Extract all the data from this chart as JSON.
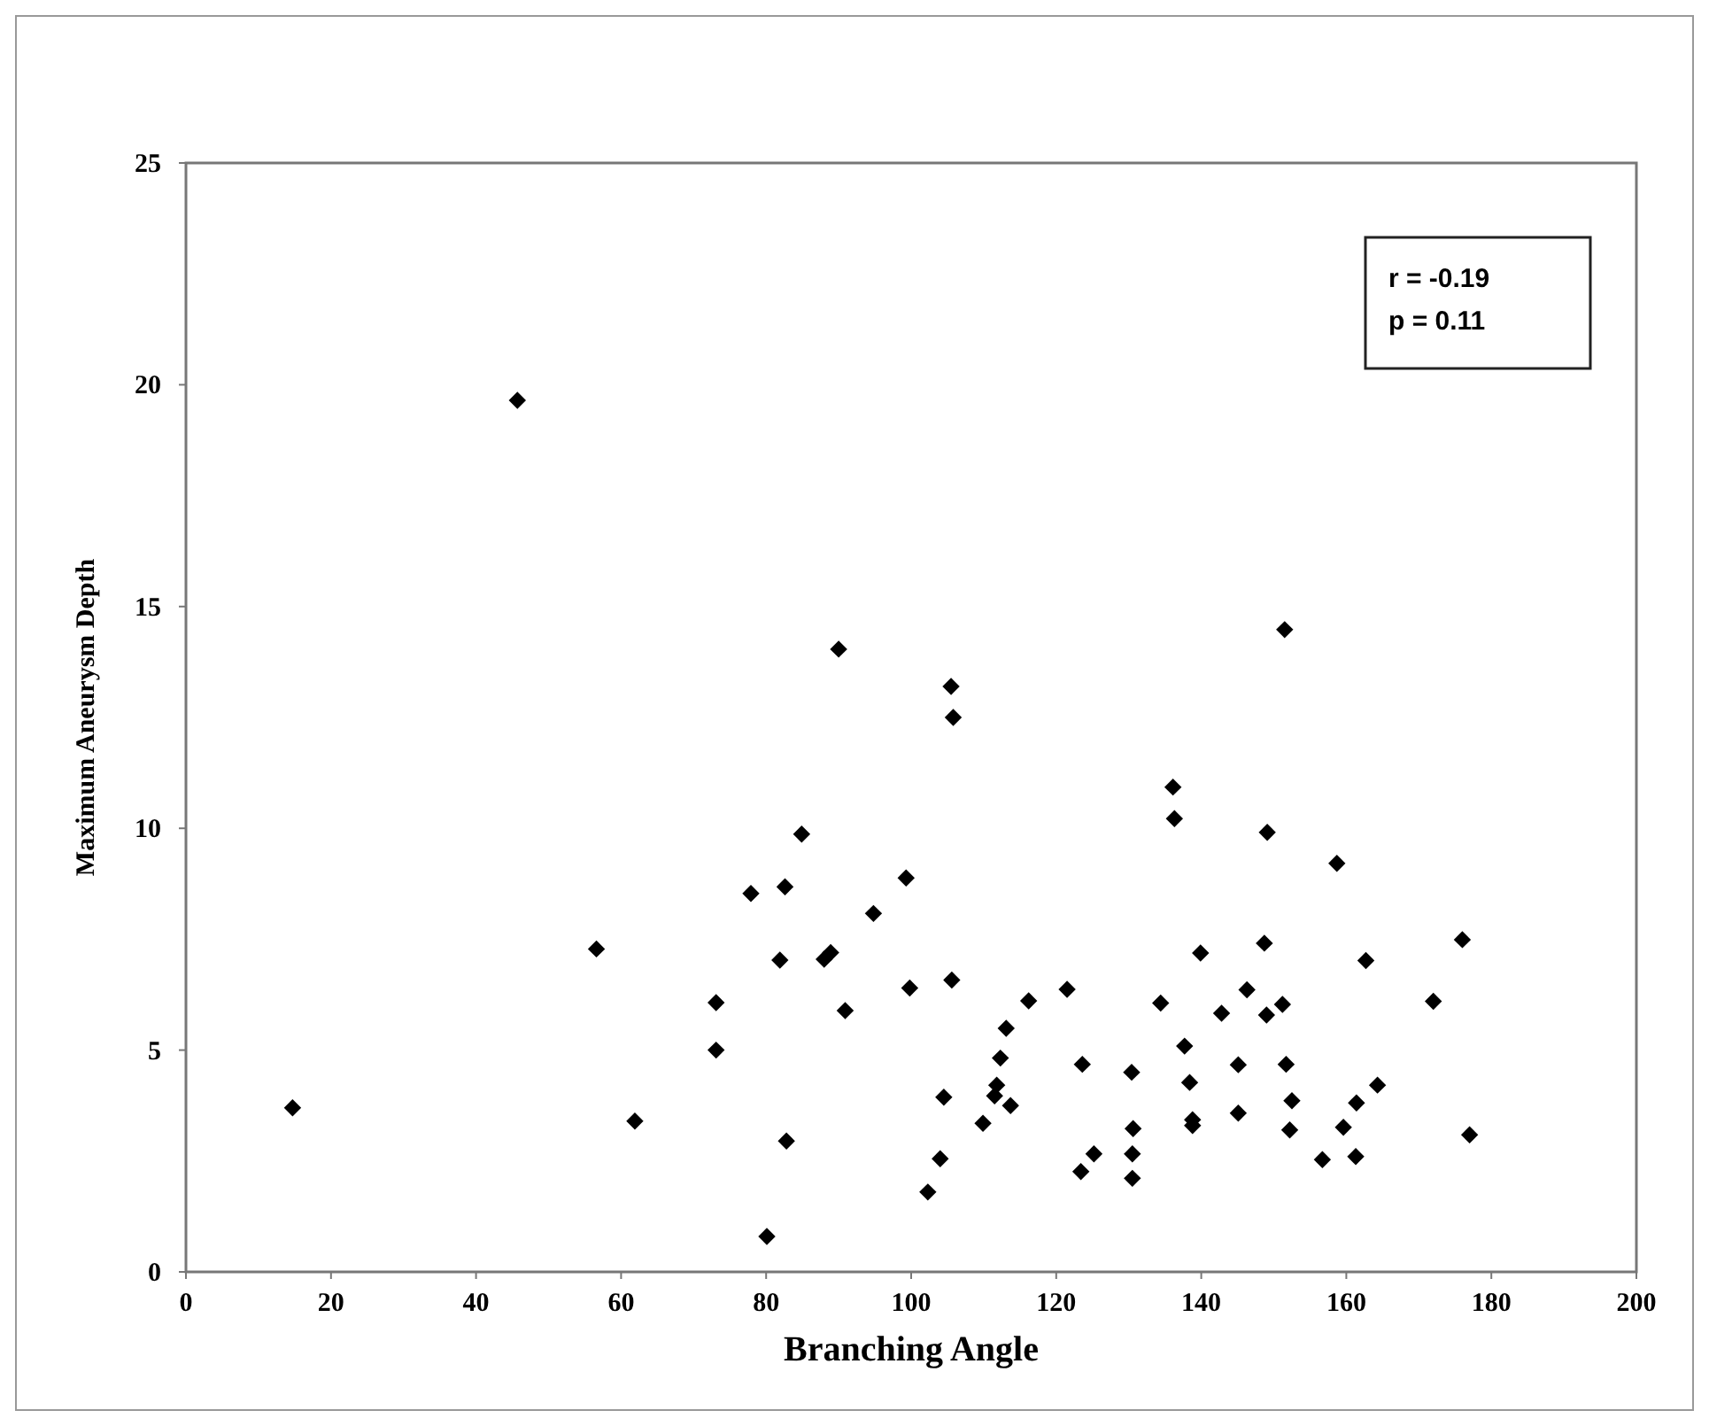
{
  "chart_data": {
    "type": "scatter",
    "xlabel": "Branching Angle",
    "ylabel": "Maximum Aneurysm Depth",
    "xlim": [
      0,
      200
    ],
    "xticks": [
      0,
      20,
      40,
      60,
      80,
      100,
      120,
      140,
      160,
      180,
      200
    ],
    "ylim": [
      0,
      25
    ],
    "yticks": [
      0,
      5,
      10,
      15,
      20,
      25
    ],
    "marker": "diamond",
    "grid": false,
    "annotations": [
      "r = -0.19",
      "p = 0.11"
    ],
    "series": [
      {
        "color": "#000000",
        "x": [
          14.7,
          45.7,
          90,
          105.5,
          105.8,
          151.5,
          56.6,
          84.9,
          77.9,
          82.6,
          99.3,
          94.8,
          81.9,
          88.0,
          88.9,
          99.8,
          105.6,
          73.1,
          90.9,
          116.2,
          121.5,
          113.1,
          112.3,
          73.1,
          111.8,
          111.5,
          104.5,
          113.7,
          109.9,
          61.9,
          82.8,
          104,
          102.3,
          80.1,
          136.1,
          136.3,
          149.1,
          158.7,
          139.9,
          148.7,
          162.7,
          176.0,
          172.0,
          134.4,
          142.8,
          146.3,
          149.0,
          151.2,
          123.6,
          130.4,
          137.7,
          138.4,
          145.1,
          151.7,
          152.5,
          164.3,
          161.4,
          130.6,
          138.8,
          138.8,
          145.1,
          152.2,
          159.6,
          177.0,
          125.2,
          123.4,
          130.5,
          130.5,
          156.7,
          161.3
        ],
        "values": [
          3.7,
          19.65,
          14.04,
          13.2,
          12.5,
          14.48,
          7.28,
          9.87,
          8.53,
          8.68,
          8.88,
          8.08,
          7.03,
          7.05,
          7.2,
          6.4,
          6.58,
          6.07,
          5.89,
          6.11,
          6.37,
          5.49,
          4.82,
          5.0,
          4.21,
          3.97,
          3.94,
          3.75,
          3.35,
          3.4,
          2.95,
          2.55,
          1.8,
          0.8,
          10.93,
          10.22,
          9.91,
          9.21,
          7.19,
          7.41,
          7.02,
          7.49,
          6.1,
          6.06,
          5.83,
          6.36,
          5.79,
          6.03,
          4.68,
          4.5,
          5.09,
          4.27,
          4.67,
          4.68,
          3.86,
          4.21,
          3.81,
          3.23,
          3.43,
          3.3,
          3.58,
          3.2,
          3.26,
          3.09,
          2.66,
          2.26,
          2.66,
          2.11,
          2.53,
          2.6
        ]
      }
    ]
  }
}
